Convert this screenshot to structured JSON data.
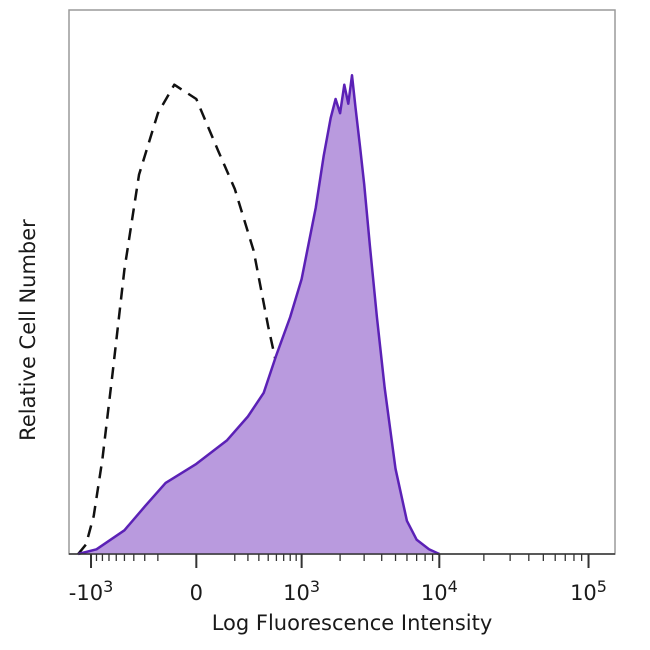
{
  "chart_data": {
    "type": "area",
    "xlabel": "Log Fluorescence Intensity",
    "ylabel": "Relative Cell Number",
    "x_scale": "biexponential",
    "xlim": [
      -1500,
      150000
    ],
    "ylim": [
      0,
      100
    ],
    "y_ticks_labeled": false,
    "grid": false,
    "legend": "none",
    "x_ticks": [
      {
        "value": -1000,
        "base": "-10",
        "exp": "3"
      },
      {
        "value": 0,
        "text": "0"
      },
      {
        "value": 1000,
        "base": "10",
        "exp": "3"
      },
      {
        "value": 10000,
        "base": "10",
        "exp": "4"
      },
      {
        "value": 100000,
        "base": "10",
        "exp": "5"
      }
    ],
    "series": [
      {
        "style": "dashed",
        "color": "#111111",
        "x": [
          -1270,
          -1100,
          -950,
          -800,
          -650,
          -500,
          -350,
          -200,
          -100,
          0,
          100,
          200,
          350,
          500,
          700,
          900,
          1200,
          1700,
          2300,
          3000,
          4000,
          5500,
          7500,
          10000
        ],
        "y": [
          0,
          2,
          8,
          20,
          38,
          60,
          80,
          93,
          99,
          96,
          85,
          77,
          64,
          48,
          33,
          21,
          13,
          11,
          10,
          8,
          5,
          3,
          1,
          0
        ]
      },
      {
        "style": "filled",
        "color": "#5b21b6",
        "fill": "#b99ade",
        "x": [
          -1270,
          -900,
          -500,
          -300,
          -150,
          0,
          150,
          300,
          450,
          600,
          800,
          1000,
          1300,
          1500,
          1700,
          1850,
          2000,
          2150,
          2300,
          2450,
          2600,
          2800,
          3000,
          3300,
          3700,
          4200,
          5000,
          6000,
          7000,
          8500,
          10000
        ],
        "y": [
          0,
          1,
          5,
          10,
          15,
          19,
          24,
          29,
          34,
          42,
          50,
          58,
          73,
          84,
          92,
          96,
          93,
          99,
          95,
          101,
          94,
          86,
          78,
          65,
          50,
          35,
          18,
          7,
          3,
          1,
          0
        ]
      }
    ]
  }
}
